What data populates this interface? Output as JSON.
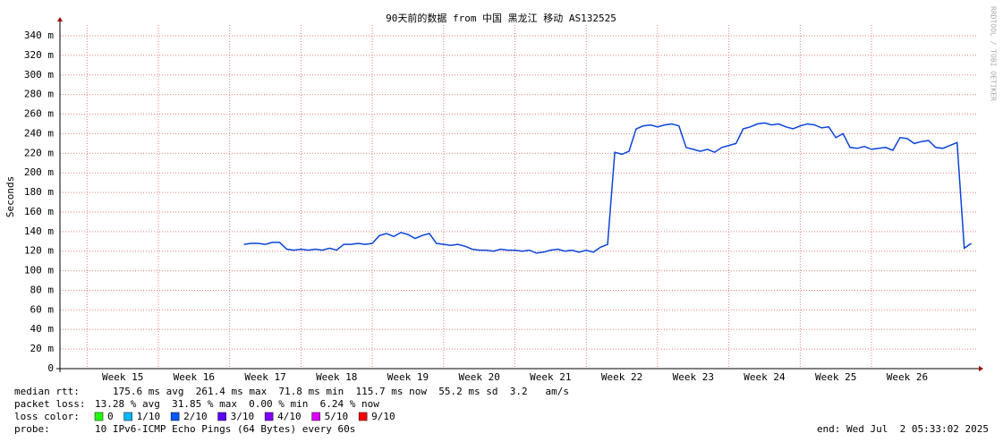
{
  "chart_data": {
    "type": "line",
    "title": "90天前的数据 from 中国 黑龙江 移动 AS132525",
    "y_label": "Seconds",
    "watermark": "RRDTOOL / TOBI OETIKER",
    "xlim": [
      14.62,
      27.48
    ],
    "xticks": [
      {
        "value": 15,
        "label": "Week 15"
      },
      {
        "value": 16,
        "label": "Week 16"
      },
      {
        "value": 17,
        "label": "Week 17"
      },
      {
        "value": 18,
        "label": "Week 18"
      },
      {
        "value": 19,
        "label": "Week 19"
      },
      {
        "value": 20,
        "label": "Week 20"
      },
      {
        "value": 21,
        "label": "Week 21"
      },
      {
        "value": 22,
        "label": "Week 22"
      },
      {
        "value": 23,
        "label": "Week 23"
      },
      {
        "value": 24,
        "label": "Week 24"
      },
      {
        "value": 25,
        "label": "Week 25"
      },
      {
        "value": 26,
        "label": "Week 26"
      }
    ],
    "ylim": [
      0,
      0.351
    ],
    "yticks": [
      0,
      {
        "value": 0.02,
        "label": "20 m"
      },
      {
        "value": 0.04,
        "label": "40 m"
      },
      {
        "value": 0.06,
        "label": "60 m"
      },
      {
        "value": 0.08,
        "label": "80 m"
      },
      {
        "value": 0.1,
        "label": "100 m"
      },
      {
        "value": 0.12,
        "label": "120 m"
      },
      {
        "value": 0.14,
        "label": "140 m"
      },
      {
        "value": 0.16,
        "label": "160 m"
      },
      {
        "value": 0.18,
        "label": "180 m"
      },
      {
        "value": 0.2,
        "label": "200 m"
      },
      {
        "value": 0.22,
        "label": "220 m"
      },
      {
        "value": 0.24,
        "label": "240 m"
      },
      {
        "value": 0.26,
        "label": "260 m"
      },
      {
        "value": 0.28,
        "label": "280 m"
      },
      {
        "value": 0.3,
        "label": "300 m"
      },
      {
        "value": 0.32,
        "label": "320 m"
      },
      {
        "value": 0.34,
        "label": "340 m"
      }
    ],
    "grid": true,
    "x": [
      17.2,
      17.3,
      17.4,
      17.5,
      17.6,
      17.7,
      17.8,
      17.9,
      18.0,
      18.1,
      18.2,
      18.3,
      18.4,
      18.5,
      18.6,
      18.7,
      18.8,
      18.9,
      19.0,
      19.1,
      19.2,
      19.3,
      19.4,
      19.5,
      19.6,
      19.7,
      19.8,
      19.9,
      20.0,
      20.1,
      20.2,
      20.3,
      20.4,
      20.5,
      20.6,
      20.7,
      20.8,
      20.9,
      21.0,
      21.1,
      21.2,
      21.3,
      21.4,
      21.5,
      21.6,
      21.7,
      21.8,
      21.9,
      22.0,
      22.1,
      22.2,
      22.3,
      22.4,
      22.5,
      22.6,
      22.7,
      22.8,
      22.9,
      23.0,
      23.1,
      23.2,
      23.3,
      23.4,
      23.5,
      23.6,
      23.7,
      23.8,
      23.9,
      24.0,
      24.1,
      24.2,
      24.3,
      24.4,
      24.5,
      24.6,
      24.7,
      24.8,
      24.9,
      25.0,
      25.1,
      25.2,
      25.3,
      25.4,
      25.5,
      25.6,
      25.7,
      25.8,
      25.9,
      26.0,
      26.1,
      26.2,
      26.3,
      26.4,
      26.5,
      26.6,
      26.7,
      26.8,
      26.9,
      27.0,
      27.1,
      27.2,
      27.3,
      27.4
    ],
    "series": [
      {
        "name": "median rtt",
        "color": "#0a44dc",
        "values": [
          0.127,
          0.128,
          0.128,
          0.127,
          0.129,
          0.129,
          0.122,
          0.121,
          0.122,
          0.121,
          0.122,
          0.121,
          0.123,
          0.121,
          0.127,
          0.127,
          0.128,
          0.127,
          0.128,
          0.136,
          0.138,
          0.135,
          0.139,
          0.137,
          0.133,
          0.136,
          0.138,
          0.128,
          0.127,
          0.126,
          0.127,
          0.125,
          0.122,
          0.121,
          0.121,
          0.12,
          0.122,
          0.121,
          0.121,
          0.12,
          0.121,
          0.118,
          0.119,
          0.121,
          0.122,
          0.12,
          0.121,
          0.119,
          0.121,
          0.119,
          0.124,
          0.127,
          0.221,
          0.219,
          0.222,
          0.245,
          0.248,
          0.249,
          0.247,
          0.249,
          0.25,
          0.248,
          0.226,
          0.224,
          0.222,
          0.224,
          0.221,
          0.226,
          0.228,
          0.23,
          0.245,
          0.247,
          0.25,
          0.251,
          0.249,
          0.25,
          0.247,
          0.245,
          0.248,
          0.25,
          0.249,
          0.246,
          0.247,
          0.236,
          0.24,
          0.226,
          0.225,
          0.227,
          0.224,
          0.225,
          0.226,
          0.223,
          0.236,
          0.235,
          0.23,
          0.232,
          0.233,
          0.226,
          0.225,
          0.228,
          0.231,
          0.123,
          0.128
        ]
      }
    ],
    "loss_colors": [
      {
        "label": "0",
        "color": "#26ff00"
      },
      {
        "label": "1/10",
        "color": "#00b8ff"
      },
      {
        "label": "2/10",
        "color": "#0059ff"
      },
      {
        "label": "3/10",
        "color": "#5e00ff"
      },
      {
        "label": "4/10",
        "color": "#7e00ff"
      },
      {
        "label": "5/10",
        "color": "#dd00ff"
      },
      {
        "label": "9/10",
        "color": "#ff0000"
      }
    ]
  },
  "footer": {
    "median_label": "median rtt:",
    "median_stats": "175.6 ms avg  261.4 ms max  71.8 ms min  115.7 ms now  55.2 ms sd  3.2   am/s",
    "loss_label": "packet loss:",
    "loss_stats": "13.28 % avg  31.85 % max  0.00 % min  6.24 % now",
    "loss_color_label": "loss color:",
    "probe_label": "probe:",
    "probe_text": "10 IPv6-ICMP Echo Pings (64 Bytes) every 60s",
    "end": "end: Wed Jul  2 05:33:02 2025"
  }
}
